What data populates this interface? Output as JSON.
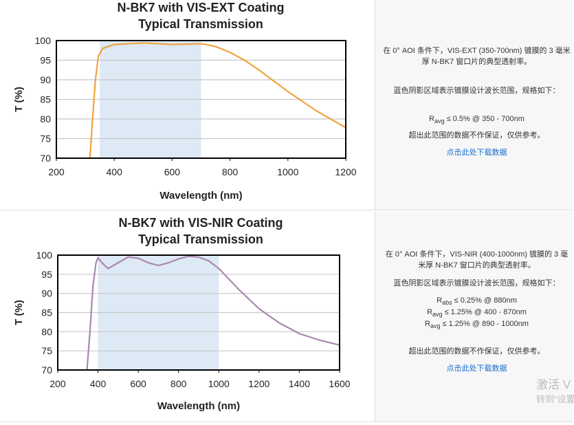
{
  "chart_data": [
    {
      "type": "line",
      "title": "N-BK7 with VIS-EXT Coating",
      "subtitle": "Typical Transmission",
      "x_label": "Wavelength (nm)",
      "y_label": "T (%)",
      "x": [
        316,
        325,
        335,
        345,
        360,
        400,
        500,
        600,
        700,
        750,
        800,
        850,
        900,
        1000,
        1100,
        1200
      ],
      "values": [
        70,
        80,
        90,
        96,
        98,
        99,
        99.4,
        99,
        99.2,
        98.5,
        97,
        95,
        92.5,
        87,
        82,
        77.8
      ],
      "color": "#f0a23c",
      "shaded_range": [
        350,
        700
      ],
      "shade_color": "#dde9f5",
      "xlim": [
        200,
        1200
      ],
      "xticks": [
        200,
        400,
        600,
        800,
        1000,
        1200
      ],
      "ylim": [
        70,
        100
      ],
      "yticks": [
        70,
        75,
        80,
        85,
        90,
        95,
        100
      ],
      "grid": true
    },
    {
      "type": "line",
      "title": "N-BK7 with VIS-NIR Coating",
      "subtitle": "Typical Transmission",
      "x_label": "Wavelength (nm)",
      "y_label": "T (%)",
      "x": [
        345,
        360,
        375,
        390,
        400,
        420,
        450,
        500,
        550,
        600,
        650,
        700,
        750,
        800,
        850,
        900,
        950,
        1000,
        1100,
        1200,
        1300,
        1400,
        1500,
        1600
      ],
      "values": [
        70,
        80,
        92,
        98,
        99.3,
        98,
        96.5,
        98,
        99.5,
        99.2,
        98,
        97.3,
        98,
        99,
        99.7,
        99.5,
        98.5,
        96.5,
        91,
        86,
        82.3,
        79.5,
        77.8,
        76.5
      ],
      "color": "#a888b0",
      "shaded_range": [
        400,
        1000
      ],
      "shade_color": "#dde9f5",
      "xlim": [
        200,
        1600
      ],
      "xticks": [
        200,
        400,
        600,
        800,
        1000,
        1200,
        1400,
        1600
      ],
      "ylim": [
        70,
        100
      ],
      "yticks": [
        70,
        75,
        80,
        85,
        90,
        95,
        100
      ],
      "grid": true
    }
  ],
  "descriptions": [
    {
      "intro": "在 0° AOI 条件下，VIS-EXT (350-700nm) 镀膜的 3 毫米厚 N-BK7 窗口片的典型透射率。",
      "range_note": "蓝色阴影区域表示镀膜设计波长范围，规格如下：",
      "specs": [
        {
          "symbol": "R",
          "sub": "avg",
          "text": "≤ 0.5% @ 350 - 700nm"
        }
      ],
      "disclaimer": "超出此范围的数据不作保证，仅供参考。",
      "link": "点击此处下载数据"
    },
    {
      "intro": "在 0° AOI 条件下，VIS-NIR (400-1000nm) 镀膜的 3 毫米厚 N-BK7 窗口片的典型透射率。",
      "range_note": "蓝色阴影区域表示镀膜设计波长范围，规格如下：",
      "specs": [
        {
          "symbol": "R",
          "sub": "abs",
          "text": "≤ 0.25% @ 880nm"
        },
        {
          "symbol": "R",
          "sub": "avg",
          "text": "≤ 1.25% @ 400 - 870nm"
        },
        {
          "symbol": "R",
          "sub": "avg",
          "text": "≤ 1.25% @ 890 - 1000nm"
        }
      ],
      "disclaimer": "超出此范围的数据不作保证，仅供参考。",
      "link": "点击此处下载数据"
    }
  ],
  "watermark": [
    "激活 V",
    "转到“设置"
  ]
}
